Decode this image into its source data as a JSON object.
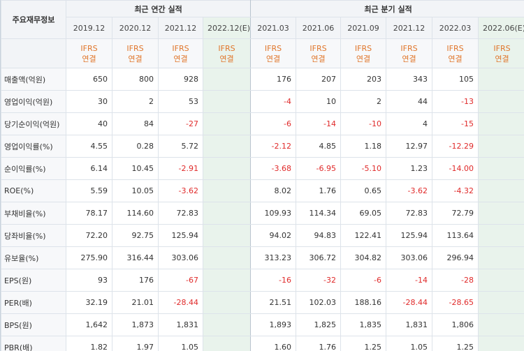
{
  "header": {
    "row_label": "주요재무정보",
    "annual_title": "최근 연간 실적",
    "quarter_title": "최근 분기 실적"
  },
  "periods": [
    {
      "label": "2019.12",
      "std": [
        "IFRS",
        "연결"
      ],
      "estimate": false
    },
    {
      "label": "2020.12",
      "std": [
        "IFRS",
        "연결"
      ],
      "estimate": false
    },
    {
      "label": "2021.12",
      "std": [
        "IFRS",
        "연결"
      ],
      "estimate": false
    },
    {
      "label": "2022.12(E)",
      "std": [
        "IFRS",
        "연결"
      ],
      "estimate": true
    },
    {
      "label": "2021.03",
      "std": [
        "IFRS",
        "연결"
      ],
      "estimate": false
    },
    {
      "label": "2021.06",
      "std": [
        "IFRS",
        "연결"
      ],
      "estimate": false
    },
    {
      "label": "2021.09",
      "std": [
        "IFRS",
        "연결"
      ],
      "estimate": false
    },
    {
      "label": "2021.12",
      "std": [
        "IFRS",
        "연결"
      ],
      "estimate": false
    },
    {
      "label": "2022.03",
      "std": [
        "IFRS",
        "연결"
      ],
      "estimate": false
    },
    {
      "label": "2022.06(E)",
      "std": [
        "IFRS",
        "연결"
      ],
      "estimate": true
    }
  ],
  "rows": [
    {
      "label": "매출액(억원)",
      "values": [
        "650",
        "800",
        "928",
        "",
        "176",
        "207",
        "203",
        "343",
        "105",
        ""
      ],
      "group_start": true
    },
    {
      "label": "영업이익(억원)",
      "values": [
        "30",
        "2",
        "53",
        "",
        "-4",
        "10",
        "2",
        "44",
        "-13",
        ""
      ]
    },
    {
      "label": "당기순이익(억원)",
      "values": [
        "40",
        "84",
        "-27",
        "",
        "-6",
        "-14",
        "-10",
        "4",
        "-15",
        ""
      ]
    },
    {
      "label": "영업이익률(%)",
      "values": [
        "4.55",
        "0.28",
        "5.72",
        "",
        "-2.12",
        "4.85",
        "1.18",
        "12.97",
        "-12.29",
        ""
      ],
      "group_start": true
    },
    {
      "label": "순이익률(%)",
      "values": [
        "6.14",
        "10.45",
        "-2.91",
        "",
        "-3.68",
        "-6.95",
        "-5.10",
        "1.23",
        "-14.00",
        ""
      ]
    },
    {
      "label": "ROE(%)",
      "values": [
        "5.59",
        "10.05",
        "-3.62",
        "",
        "8.02",
        "1.76",
        "0.65",
        "-3.62",
        "-4.32",
        ""
      ]
    },
    {
      "label": "부채비율(%)",
      "values": [
        "78.17",
        "114.60",
        "72.83",
        "",
        "109.93",
        "114.34",
        "69.05",
        "72.83",
        "72.79",
        ""
      ],
      "group_start": true
    },
    {
      "label": "당좌비율(%)",
      "values": [
        "72.20",
        "92.75",
        "125.94",
        "",
        "94.02",
        "94.83",
        "122.41",
        "125.94",
        "113.64",
        ""
      ]
    },
    {
      "label": "유보율(%)",
      "values": [
        "275.90",
        "316.44",
        "303.06",
        "",
        "313.23",
        "306.72",
        "304.82",
        "303.06",
        "296.94",
        ""
      ]
    },
    {
      "label": "EPS(원)",
      "values": [
        "93",
        "176",
        "-67",
        "",
        "-16",
        "-32",
        "-6",
        "-14",
        "-28",
        ""
      ],
      "group_start": true
    },
    {
      "label": "PER(배)",
      "values": [
        "32.19",
        "21.01",
        "-28.44",
        "",
        "21.51",
        "102.03",
        "188.16",
        "-28.44",
        "-28.65",
        ""
      ]
    },
    {
      "label": "BPS(원)",
      "values": [
        "1,642",
        "1,873",
        "1,831",
        "",
        "1,893",
        "1,825",
        "1,835",
        "1,831",
        "1,806",
        ""
      ]
    },
    {
      "label": "PBR(배)",
      "values": [
        "1.82",
        "1.97",
        "1.05",
        "",
        "1.60",
        "1.76",
        "1.25",
        "1.05",
        "1.25",
        ""
      ]
    }
  ],
  "colors": {
    "negative": "#e02a2a",
    "ifrs": "#e0762b",
    "estimate_bg": "#e9f3ec"
  }
}
